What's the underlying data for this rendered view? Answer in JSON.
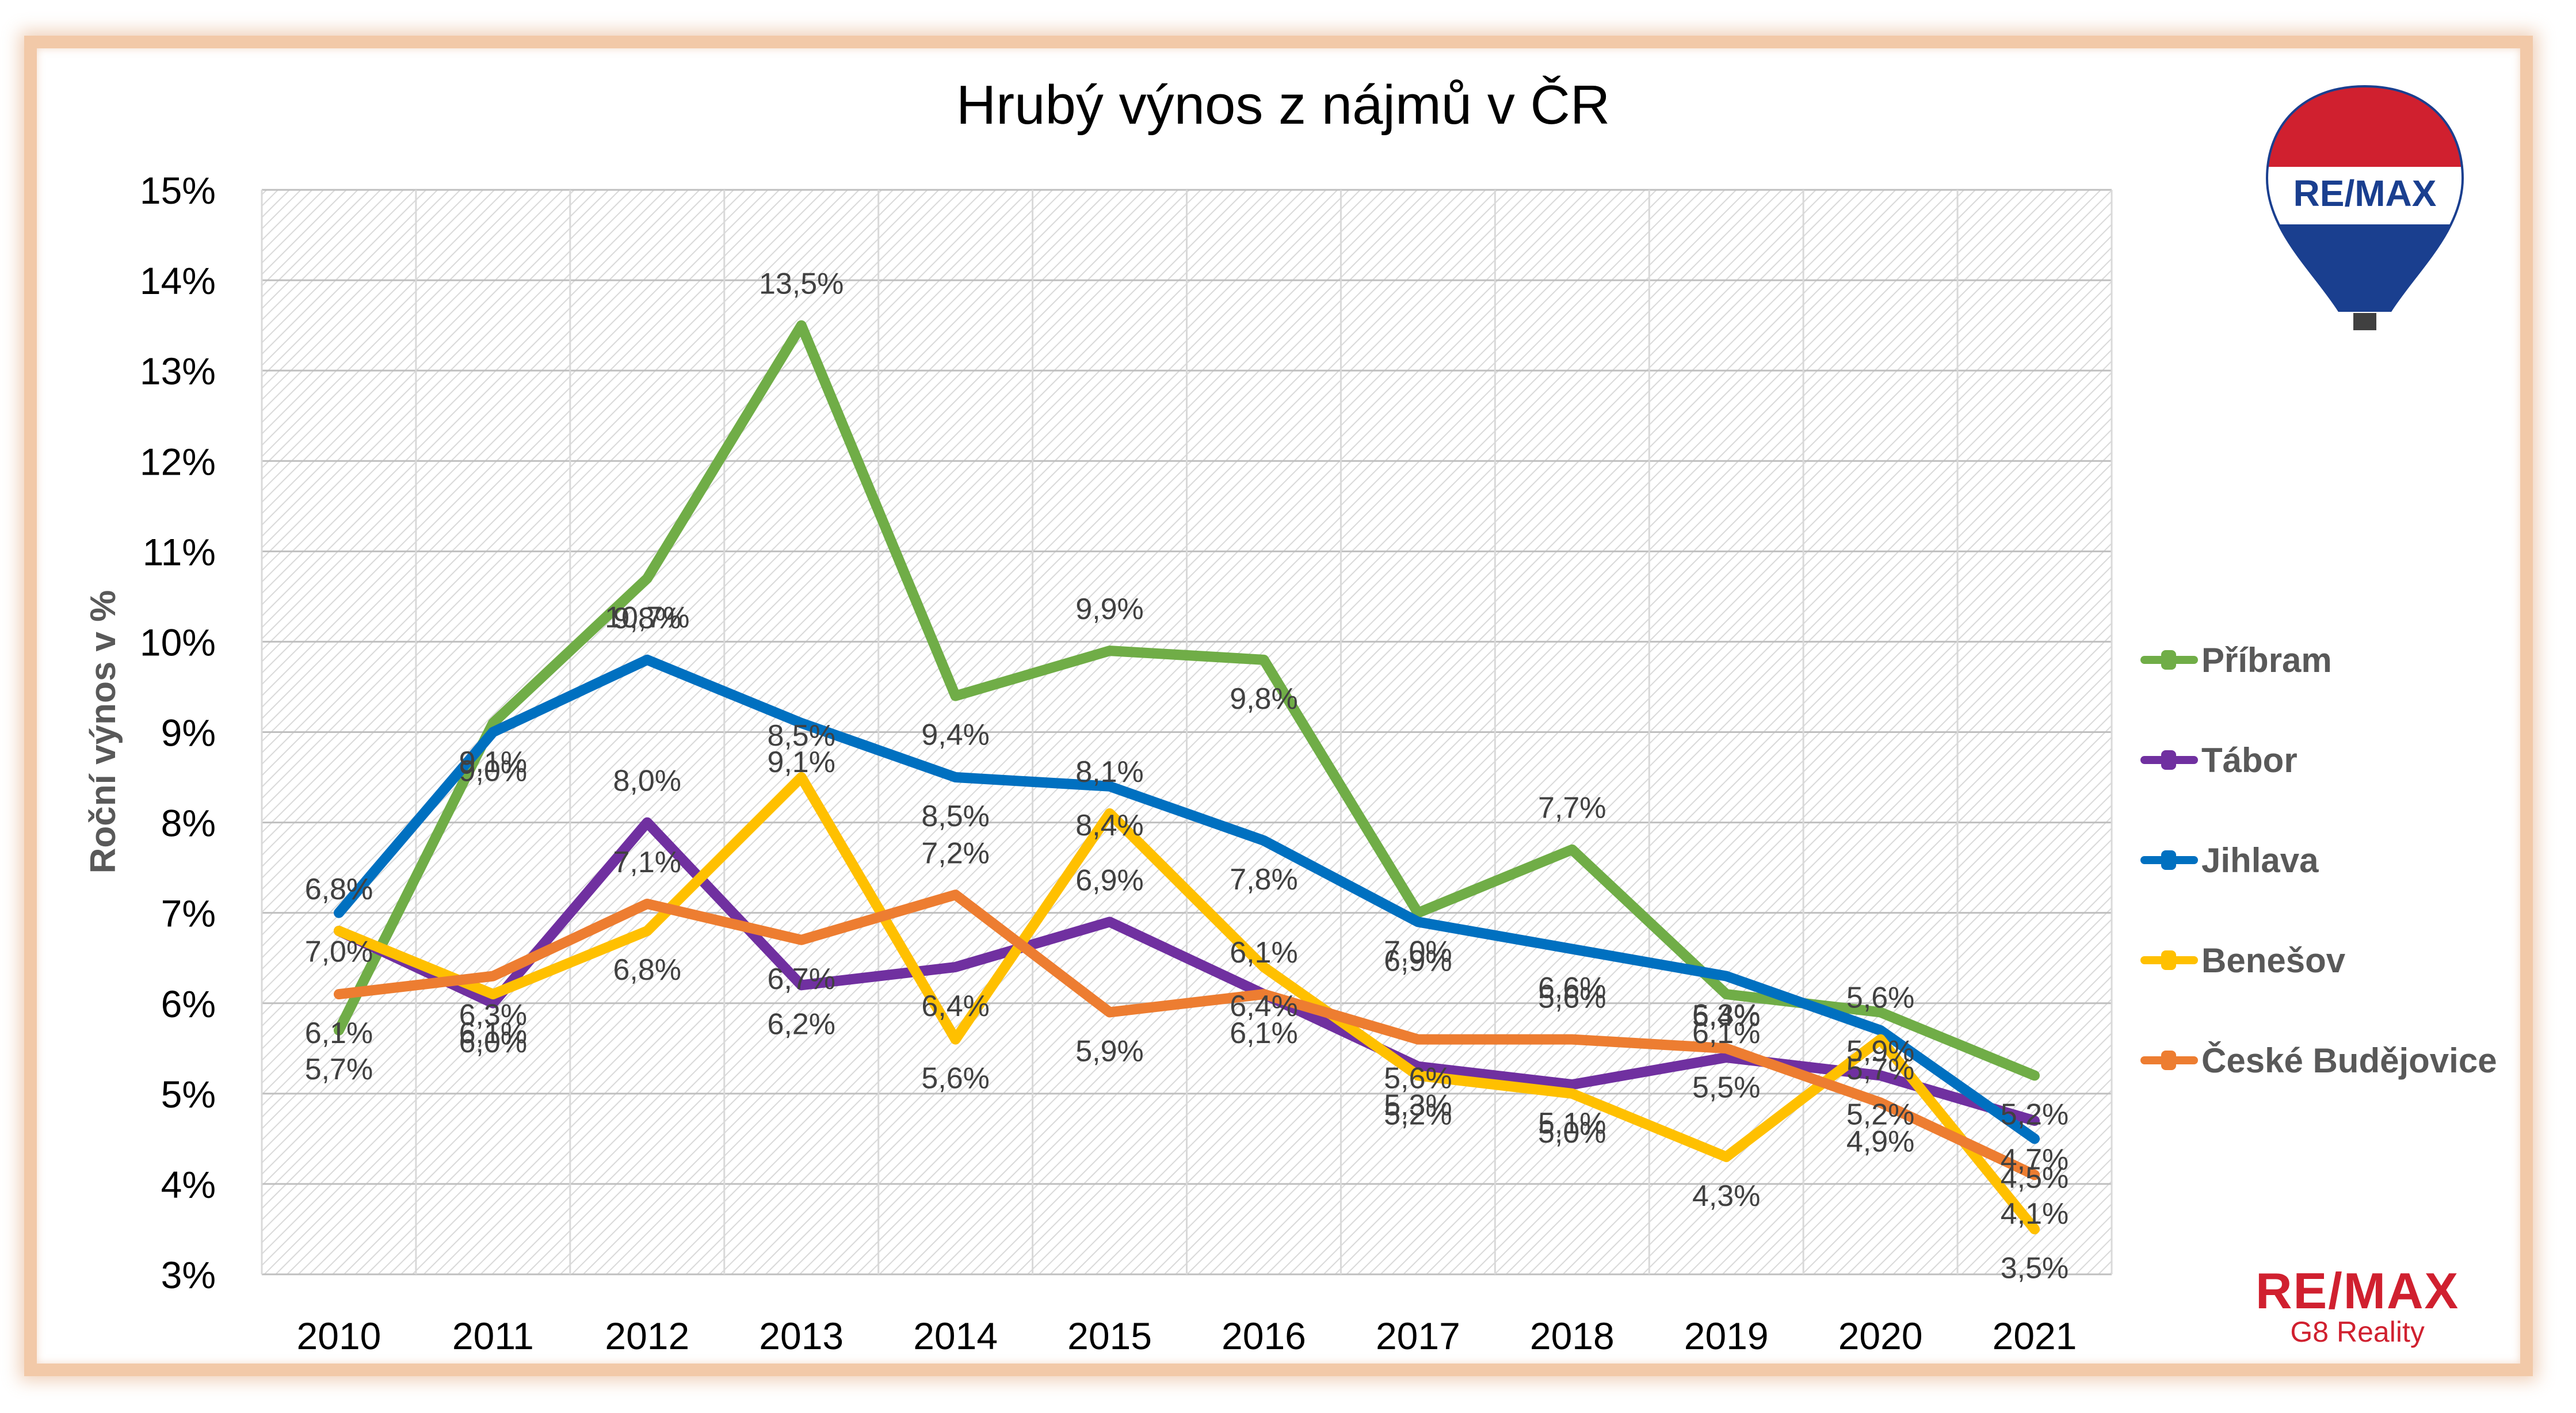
{
  "chart_data": {
    "type": "line",
    "title": "Hrubý výnos z nájmů v ČR",
    "xlabel": "",
    "ylabel": "Roční výnos v %",
    "ylim": [
      3,
      15
    ],
    "grid": true,
    "legend_position": "right",
    "categories": [
      "2010",
      "2011",
      "2012",
      "2013",
      "2014",
      "2015",
      "2016",
      "2017",
      "2018",
      "2019",
      "2020",
      "2021"
    ],
    "y_ticks": [
      "3%",
      "4%",
      "5%",
      "6%",
      "7%",
      "8%",
      "9%",
      "10%",
      "11%",
      "12%",
      "13%",
      "14%",
      "15%"
    ],
    "series": [
      {
        "name": "Příbram",
        "color": "#70ad47",
        "values": [
          5.7,
          9.1,
          10.7,
          13.5,
          9.4,
          9.9,
          9.8,
          7.0,
          7.7,
          6.1,
          5.9,
          5.2
        ],
        "labels": [
          "5,7%",
          "9,1%",
          "10,7%",
          "13,5%",
          "9,4%",
          "9,9%",
          "9,8%",
          "7,0%",
          "7,7%",
          "6,1%",
          "5,9%",
          "5,2%"
        ]
      },
      {
        "name": "Tábor",
        "color": "#7030a0",
        "values": [
          6.8,
          6.0,
          8.0,
          6.2,
          6.4,
          6.9,
          6.1,
          5.3,
          5.1,
          5.4,
          5.2,
          4.7
        ],
        "labels": [
          "6,8%",
          "6,0%",
          "8,0%",
          "6,2%",
          "6,4%",
          "6,9%",
          "6,1%",
          "5,3%",
          "5,1%",
          "5,4%",
          "5,2%",
          "4,7%"
        ]
      },
      {
        "name": "Jihlava",
        "color": "#0070c0",
        "values": [
          7.0,
          9.0,
          9.8,
          9.1,
          8.5,
          8.4,
          7.8,
          6.9,
          6.6,
          6.3,
          5.7,
          4.5
        ],
        "labels": [
          "7,0%",
          "9,0%",
          "9,8%",
          "9,1%",
          "8,5%",
          "8,4%",
          "7,8%",
          "6,9%",
          "6,6%",
          "6,3%",
          "5,7%",
          "4,5%"
        ]
      },
      {
        "name": "Benešov",
        "color": "#ffc000",
        "values": [
          6.8,
          6.1,
          6.8,
          8.5,
          5.6,
          8.1,
          6.4,
          5.2,
          5.0,
          4.3,
          5.6,
          3.5
        ],
        "labels": [
          "6,8%",
          "6,1%",
          "6,8%",
          "8,5%",
          "5,6%",
          "8,1%",
          "6,4%",
          "5,2%",
          "5,0%",
          "4,3%",
          "5,6%",
          "3,5%"
        ]
      },
      {
        "name": "České Budějovice",
        "color": "#ed7d31",
        "values": [
          6.1,
          6.3,
          7.1,
          6.7,
          7.2,
          5.9,
          6.1,
          5.6,
          5.6,
          5.5,
          4.9,
          4.1
        ],
        "labels": [
          "6,1%",
          "6,3%",
          "7,1%",
          "6,7%",
          "7,2%",
          "5,9%",
          "6,1%",
          "5,6%",
          "5,6%",
          "5,5%",
          "4,9%",
          "4,1%"
        ]
      }
    ]
  },
  "logo": {
    "brand": "RE/MAX",
    "subtitle": "G8 Reality",
    "balloon_text": "RE/MAX",
    "colors": {
      "red": "#d0202f",
      "blue": "#1a3f8f"
    }
  }
}
